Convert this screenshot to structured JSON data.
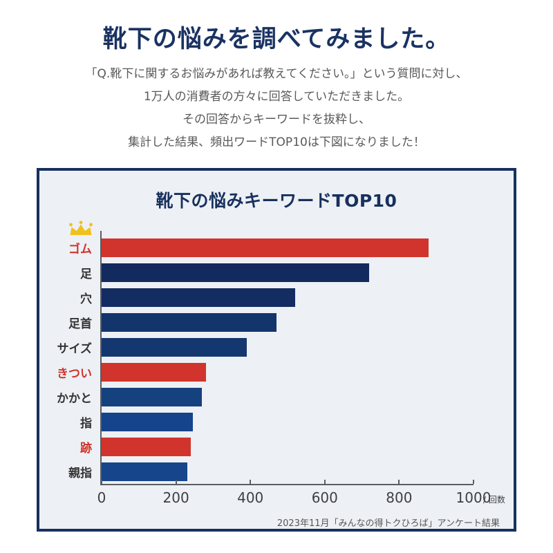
{
  "page": {
    "title": "靴下の悩みを調べてみました。",
    "intro_lines": [
      "「Q.靴下に関するお悩みがあれば教えてください。」という質問に対し、",
      "1万人の消費者の方々に回答していただきました。",
      "その回答からキーワードを抜粋し、",
      "集計した結果、頻出ワードTOP10は下図になりました！"
    ]
  },
  "chart": {
    "title": "靴下の悩みキーワードTOP10",
    "axis_unit": "/ 回数",
    "source": "2023年11月「みんなの得トクひろば」アンケート結果"
  },
  "chart_data": {
    "type": "bar",
    "orientation": "horizontal",
    "title": "靴下の悩みキーワードTOP10",
    "categories": [
      "ゴム",
      "足",
      "穴",
      "足首",
      "サイズ",
      "きつい",
      "かかと",
      "指",
      "跡",
      "親指"
    ],
    "values": [
      880,
      720,
      520,
      470,
      390,
      280,
      270,
      245,
      240,
      230
    ],
    "bar_colors": [
      "#d0342c",
      "#122a5e",
      "#132c61",
      "#14356c",
      "#14376f",
      "#d0342c",
      "#15417f",
      "#16448a",
      "#d0342c",
      "#16458c"
    ],
    "label_colors": [
      "#d0342c",
      "#333333",
      "#333333",
      "#333333",
      "#333333",
      "#d0342c",
      "#333333",
      "#333333",
      "#d0342c",
      "#333333"
    ],
    "xlim": [
      0,
      1000
    ],
    "x_ticks": [
      0,
      200,
      400,
      600,
      800,
      1000
    ],
    "x_unit": "回数",
    "highlight_color": "#d0342c",
    "crown_on": "ゴム",
    "crown_color": "#f0c11c",
    "grid": false,
    "legend": false,
    "source_note": "2023年11月「みんなの得トクひろば」アンケート結果"
  }
}
